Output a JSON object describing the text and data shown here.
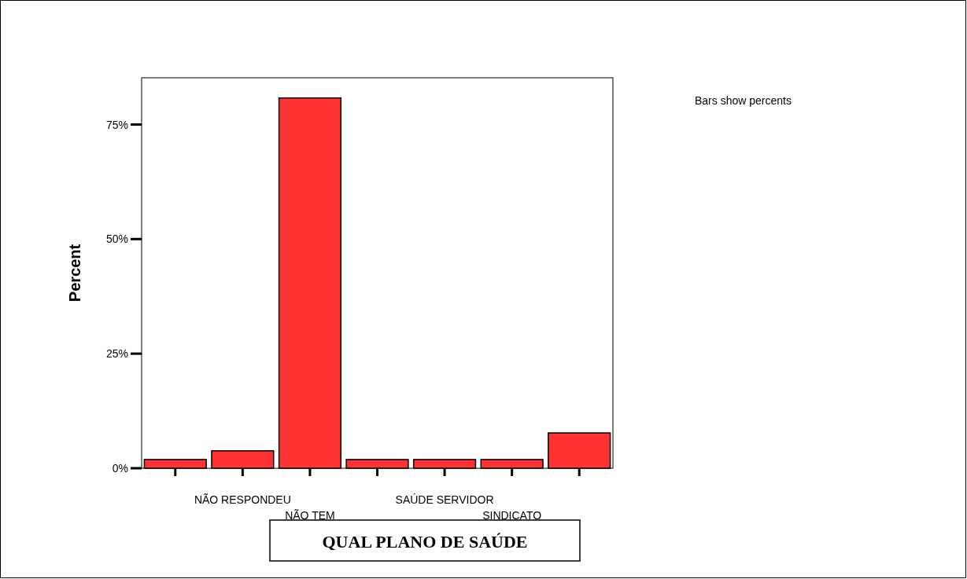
{
  "chart_data": {
    "type": "bar",
    "ylabel": "Percent",
    "xlabel": "QUAL PLANO DE SAÚDE",
    "categories": [
      null,
      "NÃO RESPONDEU",
      "NÃO TEM",
      null,
      "SAÚDE SERVIDOR",
      "SINDICATO",
      null
    ],
    "values": [
      1.9,
      3.8,
      80.8,
      1.9,
      1.9,
      1.9,
      7.7
    ],
    "color": "#ff3333",
    "ylim": [
      0,
      85.2
    ],
    "yticks": [
      {
        "value": 0,
        "label": "0%"
      },
      {
        "value": 25,
        "label": "25%"
      },
      {
        "value": 50,
        "label": "50%"
      },
      {
        "value": 75,
        "label": "75%"
      }
    ],
    "annotations": [
      "Bars show percents"
    ]
  }
}
